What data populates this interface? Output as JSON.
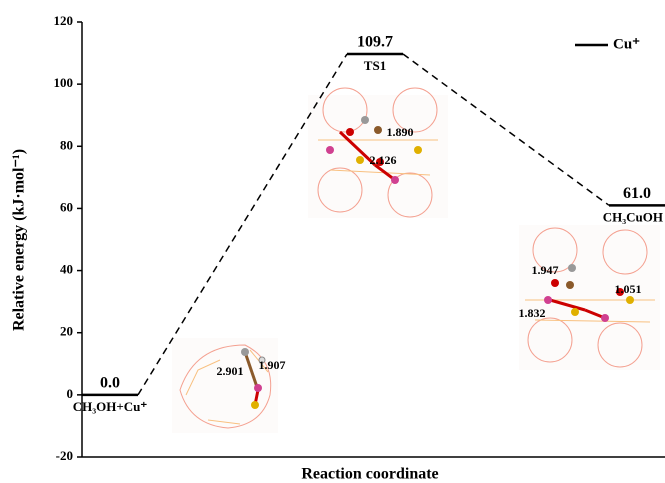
{
  "chart_data": {
    "type": "energy",
    "x_label": "Reaction coordinate",
    "y_label": "Relative energy (kJ·mol⁻¹)",
    "categories": [
      "CH₃OH+Cu⁺",
      "TS1",
      "CH₃CuOH"
    ],
    "series": [
      {
        "name": "Cu⁺",
        "color": "#000000",
        "values": [
          0,
          109.7,
          61.0
        ],
        "value_labels": [
          "0.0",
          "109.7",
          "61.0"
        ]
      }
    ],
    "ylim": [
      -20,
      120
    ],
    "yticks": [
      -20,
      0,
      20,
      40,
      60,
      80,
      100,
      120
    ],
    "legend": "upper right",
    "insets": [
      {
        "labels": [
          "2.901",
          "1.907"
        ]
      },
      {
        "labels": [
          "2.126",
          "1.890"
        ]
      },
      {
        "labels": [
          "1.947",
          "1.051",
          "1.832"
        ]
      }
    ]
  }
}
